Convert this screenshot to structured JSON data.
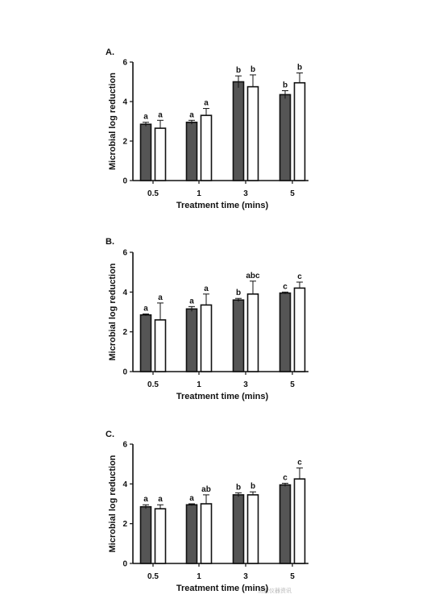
{
  "chart_data": [
    {
      "type": "bar",
      "panel": "A.",
      "categories": [
        "0.5",
        "1",
        "3",
        "5"
      ],
      "xlabel": "Treatment time (mins)",
      "ylabel": "Microbial log reduction",
      "ylim": [
        0,
        6
      ],
      "yticks": [
        0,
        2,
        4,
        6
      ],
      "series": [
        {
          "style": "filled",
          "color": "#555555",
          "values": [
            2.85,
            2.95,
            5.0,
            4.35
          ],
          "errors": [
            0.1,
            0.1,
            0.3,
            0.2
          ],
          "labels": [
            "a",
            "a",
            "b",
            "b"
          ]
        },
        {
          "style": "open",
          "color": "#ffffff",
          "values": [
            2.65,
            3.3,
            4.75,
            4.95
          ],
          "errors": [
            0.4,
            0.35,
            0.6,
            0.5
          ],
          "labels": [
            "a",
            "a",
            "b",
            "b"
          ]
        }
      ]
    },
    {
      "type": "bar",
      "panel": "B.",
      "categories": [
        "0.5",
        "1",
        "3",
        "5"
      ],
      "xlabel": "Treatment time (mins)",
      "ylabel": "Microbial log reduction",
      "ylim": [
        0,
        6
      ],
      "yticks": [
        0,
        2,
        4,
        6
      ],
      "series": [
        {
          "style": "filled",
          "color": "#555555",
          "values": [
            2.85,
            3.15,
            3.6,
            3.95
          ],
          "errors": [
            0.05,
            0.12,
            0.08,
            0.05
          ],
          "labels": [
            "a",
            "a",
            "b",
            "c"
          ]
        },
        {
          "style": "open",
          "color": "#ffffff",
          "values": [
            2.6,
            3.35,
            3.9,
            4.2
          ],
          "errors": [
            0.85,
            0.55,
            0.65,
            0.3
          ],
          "labels": [
            "a",
            "a",
            "abc",
            "c"
          ]
        }
      ]
    },
    {
      "type": "bar",
      "panel": "C.",
      "categories": [
        "0.5",
        "1",
        "3",
        "5"
      ],
      "xlabel": "Treatment time (mins)",
      "ylabel": "Microbial log reduction",
      "ylim": [
        0,
        6
      ],
      "yticks": [
        0,
        2,
        4,
        6
      ],
      "series": [
        {
          "style": "filled",
          "color": "#555555",
          "values": [
            2.85,
            2.95,
            3.45,
            3.95
          ],
          "errors": [
            0.1,
            0.05,
            0.1,
            0.08
          ],
          "labels": [
            "a",
            "a",
            "b",
            "c"
          ]
        },
        {
          "style": "open",
          "color": "#ffffff",
          "values": [
            2.75,
            3.0,
            3.45,
            4.25
          ],
          "errors": [
            0.2,
            0.45,
            0.15,
            0.55
          ],
          "labels": [
            "a",
            "ab",
            "b",
            "c"
          ]
        }
      ]
    }
  ],
  "watermark": "测量仪器资讯"
}
